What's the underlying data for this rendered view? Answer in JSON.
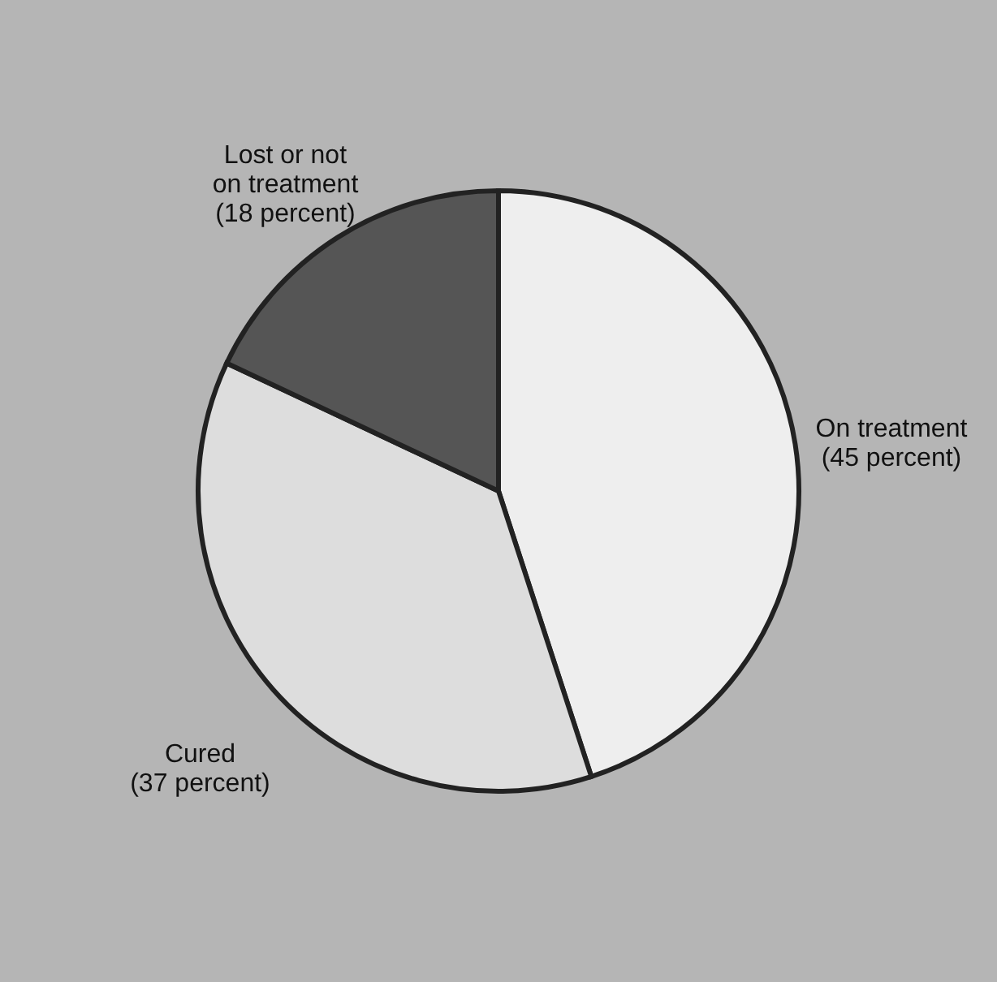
{
  "chart_data": {
    "type": "pie",
    "categories": [
      "On treatment",
      "Cured",
      "Lost or not on treatment"
    ],
    "values": [
      45,
      37,
      18
    ],
    "colors": [
      "#eeeeee",
      "#dddddd",
      "#555555"
    ],
    "value_labels": [
      "(45 percent)",
      "(37 percent)",
      "(18 percent)"
    ]
  }
}
